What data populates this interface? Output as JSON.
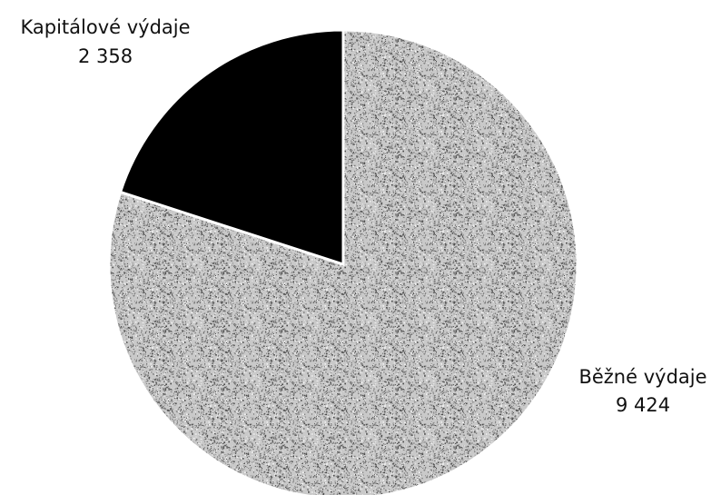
{
  "chart_data": {
    "type": "pie",
    "title": "",
    "slices": [
      {
        "label": "Běžné výdaje",
        "value": 9424,
        "value_text": "9 424",
        "color": "#9e9e9e",
        "texture": "speckled-gray"
      },
      {
        "label": "Kapitálové výdaje",
        "value": 2358,
        "value_text": "2 358",
        "color": "#000000",
        "texture": "solid"
      }
    ],
    "start_angle": "12 o'clock",
    "direction": "clockwise",
    "separator_color": "#ffffff",
    "legend": "none"
  }
}
